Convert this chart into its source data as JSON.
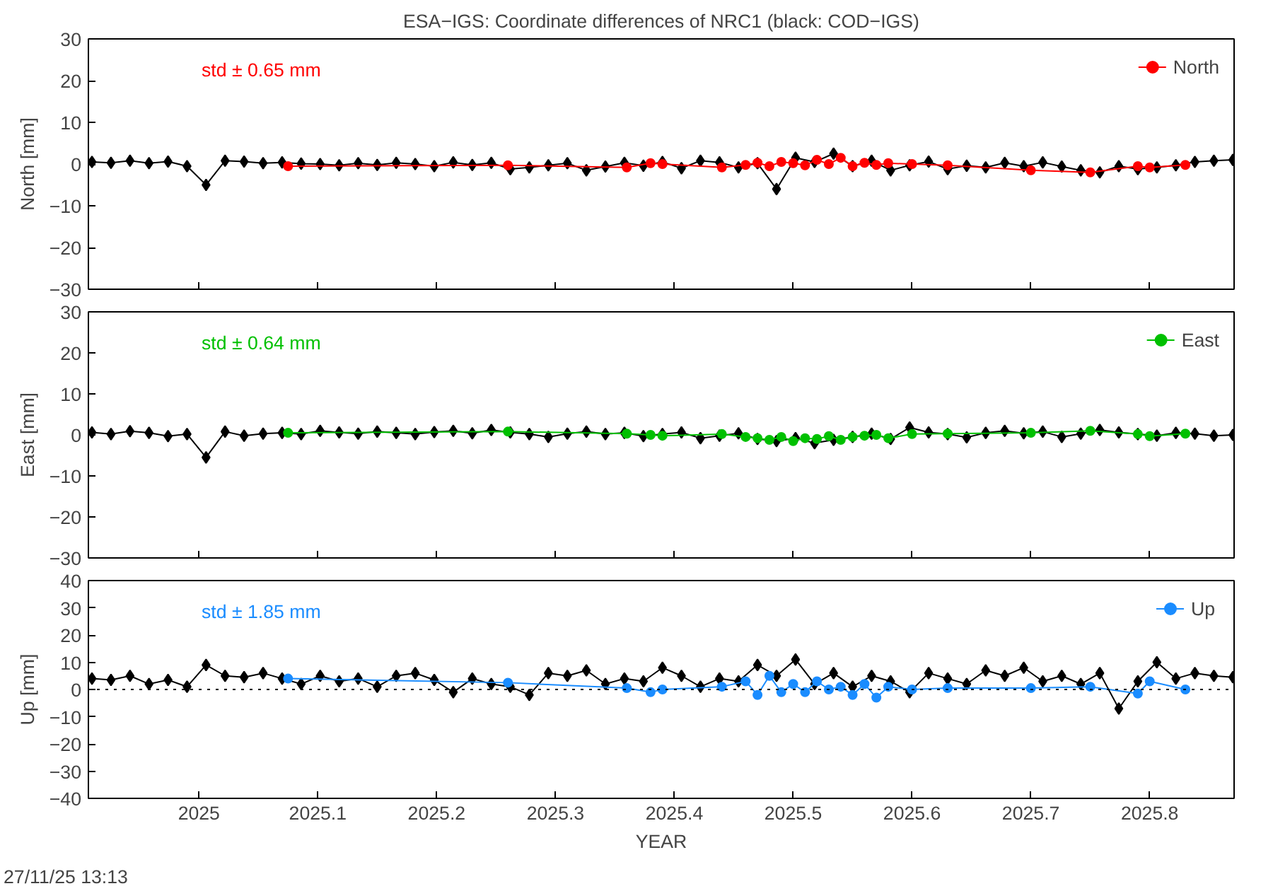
{
  "chart_data": [
    {
      "type": "line",
      "title": "ESA−IGS: Coordinate differences of NRC1 (black: COD−IGS)",
      "ylabel": "North [mm]",
      "annotations": [
        "std ± 0.65 mm"
      ],
      "xlim": [
        2024.907,
        2025.871
      ],
      "xticks": [
        2025,
        2025.1,
        2025.2,
        2025.3,
        2025.4,
        2025.5,
        2025.6,
        2025.7,
        2025.8
      ],
      "ylim": [
        -30,
        30
      ],
      "yticks": [
        -30,
        -20,
        -10,
        0,
        10,
        20,
        30
      ],
      "tick_labels": "y",
      "legend": "top right",
      "grid": false,
      "x": [
        2024.91,
        2024.926,
        2024.942,
        2024.958,
        2024.974,
        2024.99,
        2025.006,
        2025.022,
        2025.038,
        2025.054,
        2025.07,
        2025.086,
        2025.102,
        2025.118,
        2025.134,
        2025.15,
        2025.166,
        2025.182,
        2025.198,
        2025.214,
        2025.23,
        2025.246,
        2025.262,
        2025.278,
        2025.294,
        2025.31,
        2025.326,
        2025.342,
        2025.358,
        2025.374,
        2025.39,
        2025.406,
        2025.422,
        2025.438,
        2025.454,
        2025.47,
        2025.486,
        2025.502,
        2025.518,
        2025.534,
        2025.55,
        2025.566,
        2025.582,
        2025.598,
        2025.614,
        2025.63,
        2025.646,
        2025.662,
        2025.678,
        2025.694,
        2025.71,
        2025.726,
        2025.742,
        2025.758,
        2025.774,
        2025.79,
        2025.806,
        2025.822,
        2025.838,
        2025.854,
        2025.87
      ],
      "series": [
        {
          "color": "#000000",
          "marker": "diamond",
          "values": [
            0.5,
            0.3,
            0.8,
            0.2,
            0.6,
            -0.5,
            -5,
            0.8,
            0.6,
            0.2,
            0.4,
            0.1,
            0.0,
            -0.3,
            0.2,
            -0.2,
            0.3,
            0.0,
            -0.5,
            0.4,
            -0.2,
            0.3,
            -1.2,
            -0.8,
            -0.3,
            0.2,
            -1.5,
            -0.6,
            0.3,
            -0.4,
            0.5,
            -1.0,
            0.8,
            0.4,
            -0.8,
            0.2,
            -6,
            1.5,
            0.5,
            2.5,
            -0.5,
            0.8,
            -1.5,
            -0.3,
            0.6,
            -1.2,
            -0.4,
            -0.8,
            0.3,
            -0.5,
            0.4,
            -0.6,
            -1.5,
            -2.0,
            -0.5,
            -1.2,
            -0.8,
            -0.3,
            0.5,
            0.8,
            1.0
          ]
        },
        {
          "name": "North",
          "color": "#ff0000",
          "marker": "circle",
          "x": [
            2025.075,
            2025.26,
            2025.36,
            2025.38,
            2025.39,
            2025.44,
            2025.46,
            2025.47,
            2025.48,
            2025.49,
            2025.5,
            2025.51,
            2025.52,
            2025.53,
            2025.54,
            2025.55,
            2025.56,
            2025.57,
            2025.58,
            2025.6,
            2025.63,
            2025.7,
            2025.75,
            2025.79,
            2025.8,
            2025.83
          ],
          "values": [
            -0.5,
            -0.3,
            -0.8,
            0.2,
            0.0,
            -0.8,
            -0.2,
            0.3,
            -0.5,
            0.5,
            0.2,
            -0.3,
            1.0,
            0.0,
            1.5,
            -0.5,
            0.3,
            -0.2,
            0.2,
            0.0,
            -0.3,
            -1.5,
            -2.0,
            -0.5,
            -0.8,
            -0.2
          ]
        }
      ]
    },
    {
      "type": "line",
      "ylabel": "East [mm]",
      "annotations": [
        "std ± 0.64 mm"
      ],
      "xlim": [
        2024.907,
        2025.871
      ],
      "xticks": [
        2025,
        2025.1,
        2025.2,
        2025.3,
        2025.4,
        2025.5,
        2025.6,
        2025.7,
        2025.8
      ],
      "ylim": [
        -30,
        30
      ],
      "yticks": [
        -30,
        -20,
        -10,
        0,
        10,
        20,
        30
      ],
      "tick_labels": "y",
      "legend": "top right",
      "grid": false,
      "x": [
        2024.91,
        2024.926,
        2024.942,
        2024.958,
        2024.974,
        2024.99,
        2025.006,
        2025.022,
        2025.038,
        2025.054,
        2025.07,
        2025.086,
        2025.102,
        2025.118,
        2025.134,
        2025.15,
        2025.166,
        2025.182,
        2025.198,
        2025.214,
        2025.23,
        2025.246,
        2025.262,
        2025.278,
        2025.294,
        2025.31,
        2025.326,
        2025.342,
        2025.358,
        2025.374,
        2025.39,
        2025.406,
        2025.422,
        2025.438,
        2025.454,
        2025.47,
        2025.486,
        2025.502,
        2025.518,
        2025.534,
        2025.55,
        2025.566,
        2025.582,
        2025.598,
        2025.614,
        2025.63,
        2025.646,
        2025.662,
        2025.678,
        2025.694,
        2025.71,
        2025.726,
        2025.742,
        2025.758,
        2025.774,
        2025.79,
        2025.806,
        2025.822,
        2025.838,
        2025.854,
        2025.87
      ],
      "series": [
        {
          "color": "#000000",
          "marker": "diamond",
          "values": [
            0.6,
            0.2,
            0.9,
            0.5,
            -0.3,
            0.2,
            -5.5,
            0.8,
            -0.2,
            0.3,
            0.5,
            0.2,
            1.0,
            0.6,
            0.3,
            0.8,
            0.5,
            0.2,
            0.7,
            1.0,
            0.4,
            1.2,
            0.6,
            0.2,
            -0.5,
            0.3,
            0.8,
            0.2,
            0.5,
            -0.3,
            0.2,
            0.6,
            -0.8,
            -0.2,
            0.4,
            -1.0,
            -1.5,
            -0.8,
            -2.0,
            -1.2,
            -0.5,
            0.3,
            -1.0,
            1.8,
            0.6,
            0.2,
            -0.6,
            0.5,
            1.0,
            0.4,
            0.8,
            -0.5,
            0.3,
            1.2,
            0.6,
            0.2,
            -0.2,
            0.5,
            0.3,
            -0.2,
            0.0
          ]
        },
        {
          "name": "East",
          "color": "#00c000",
          "marker": "circle",
          "x": [
            2025.075,
            2025.26,
            2025.36,
            2025.38,
            2025.39,
            2025.44,
            2025.46,
            2025.47,
            2025.48,
            2025.49,
            2025.5,
            2025.51,
            2025.52,
            2025.53,
            2025.54,
            2025.55,
            2025.56,
            2025.57,
            2025.58,
            2025.6,
            2025.63,
            2025.7,
            2025.75,
            2025.79,
            2025.8,
            2025.83
          ],
          "values": [
            0.5,
            0.8,
            0.3,
            0.0,
            -0.2,
            0.2,
            -0.5,
            -0.8,
            -1.2,
            -0.5,
            -1.5,
            -0.8,
            -1.0,
            -0.3,
            -1.2,
            -0.5,
            -0.2,
            0.0,
            -0.8,
            0.2,
            0.3,
            0.5,
            1.0,
            0.2,
            -0.3,
            0.3
          ]
        }
      ]
    },
    {
      "type": "line",
      "xlabel": "YEAR",
      "ylabel": "Up [mm]",
      "annotations": [
        "std ± 1.85 mm",
        "27/11/25 13:13"
      ],
      "xlim": [
        2024.907,
        2025.871
      ],
      "xticks": [
        2025,
        2025.1,
        2025.2,
        2025.3,
        2025.4,
        2025.5,
        2025.6,
        2025.7,
        2025.8
      ],
      "ylim": [
        -40,
        40
      ],
      "yticks": [
        -40,
        -30,
        -20,
        -10,
        0,
        10,
        20,
        30,
        40
      ],
      "legend": "top right",
      "grid": false,
      "ref_lines": [
        {
          "axis": "y",
          "value": 0,
          "color": "#000000",
          "line_style": "dotted"
        }
      ],
      "x": [
        2024.91,
        2024.926,
        2024.942,
        2024.958,
        2024.974,
        2024.99,
        2025.006,
        2025.022,
        2025.038,
        2025.054,
        2025.07,
        2025.086,
        2025.102,
        2025.118,
        2025.134,
        2025.15,
        2025.166,
        2025.182,
        2025.198,
        2025.214,
        2025.23,
        2025.246,
        2025.262,
        2025.278,
        2025.294,
        2025.31,
        2025.326,
        2025.342,
        2025.358,
        2025.374,
        2025.39,
        2025.406,
        2025.422,
        2025.438,
        2025.454,
        2025.47,
        2025.486,
        2025.502,
        2025.518,
        2025.534,
        2025.55,
        2025.566,
        2025.582,
        2025.598,
        2025.614,
        2025.63,
        2025.646,
        2025.662,
        2025.678,
        2025.694,
        2025.71,
        2025.726,
        2025.742,
        2025.758,
        2025.774,
        2025.79,
        2025.806,
        2025.822,
        2025.838,
        2025.854,
        2025.87
      ],
      "series": [
        {
          "color": "#000000",
          "marker": "diamond",
          "values": [
            4,
            3.5,
            5,
            2,
            3.5,
            1,
            9,
            5,
            4.5,
            6,
            4,
            2,
            5,
            3,
            4,
            1,
            5,
            6,
            3.5,
            -1,
            4,
            2,
            1,
            -2,
            6,
            5,
            7,
            2,
            4,
            3,
            8,
            5,
            1,
            4,
            3,
            9,
            5,
            11,
            2,
            6,
            1,
            5,
            3,
            -1,
            6,
            4,
            2,
            7,
            5,
            8,
            3,
            5,
            2,
            6,
            -7,
            3,
            10,
            4,
            6,
            5,
            4.5
          ]
        },
        {
          "name": "Up",
          "color": "#1a8cff",
          "marker": "circle",
          "x": [
            2025.075,
            2025.26,
            2025.36,
            2025.38,
            2025.39,
            2025.44,
            2025.46,
            2025.47,
            2025.48,
            2025.49,
            2025.5,
            2025.51,
            2025.52,
            2025.53,
            2025.54,
            2025.55,
            2025.56,
            2025.57,
            2025.58,
            2025.6,
            2025.63,
            2025.7,
            2025.75,
            2025.79,
            2025.8,
            2025.83
          ],
          "values": [
            4,
            2.5,
            0.5,
            -1,
            0,
            1,
            3,
            -2,
            5,
            -1,
            2,
            -1,
            3,
            0,
            1,
            -2,
            2,
            -3,
            1,
            0,
            0.5,
            0.5,
            1,
            -1.5,
            3,
            0
          ]
        }
      ]
    }
  ]
}
